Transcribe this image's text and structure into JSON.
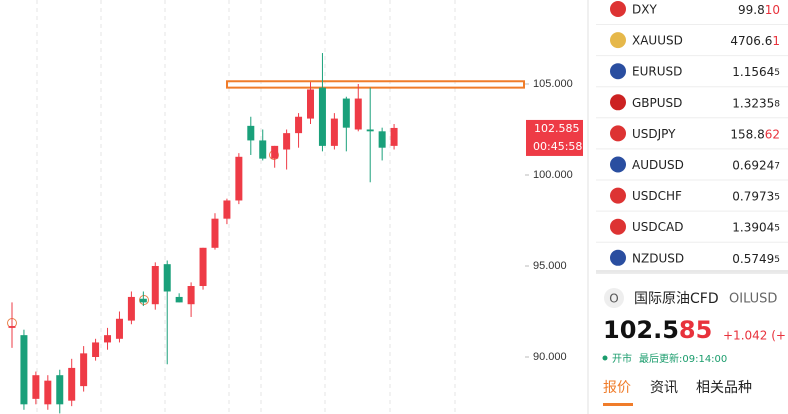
{
  "chart_data": {
    "type": "candlestick",
    "open": [
      91.6,
      91.2,
      87.7,
      87.4,
      89.0,
      87.6,
      88.4,
      90.0,
      90.8,
      91.0,
      92.0,
      93.2,
      92.9,
      95.1,
      93.3,
      92.9,
      93.9,
      96.0,
      97.6,
      98.6,
      102.7,
      101.9,
      100.9,
      101.4,
      102.3,
      103.1,
      104.8,
      101.6,
      104.2,
      102.5,
      102.5,
      102.4,
      101.6
    ],
    "high": [
      93.0,
      91.5,
      89.2,
      89.0,
      89.3,
      89.9,
      90.6,
      91.0,
      91.6,
      92.5,
      93.6,
      93.6,
      95.2,
      95.3,
      93.5,
      94.1,
      96.0,
      97.9,
      98.7,
      101.2,
      103.2,
      102.5,
      101.6,
      102.5,
      103.4,
      105.1,
      106.7,
      103.4,
      104.3,
      105.0,
      104.8,
      102.6,
      102.8
    ],
    "low": [
      90.5,
      87.1,
      87.4,
      87.1,
      86.9,
      87.3,
      88.1,
      89.8,
      90.4,
      90.8,
      91.8,
      92.8,
      92.6,
      89.6,
      93.0,
      92.2,
      93.7,
      95.9,
      97.3,
      98.4,
      101.1,
      100.8,
      100.4,
      100.3,
      101.5,
      102.8,
      101.3,
      101.4,
      101.3,
      102.4,
      99.6,
      100.8,
      101.4
    ],
    "close": [
      91.7,
      87.4,
      89.0,
      88.7,
      87.4,
      89.4,
      90.2,
      90.8,
      91.2,
      92.1,
      93.3,
      93.0,
      95.0,
      93.6,
      93.0,
      93.9,
      96.0,
      97.6,
      98.6,
      101.0,
      101.9,
      100.9,
      101.6,
      102.3,
      103.2,
      104.7,
      101.6,
      103.1,
      102.6,
      104.2,
      102.4,
      101.5,
      102.585
    ],
    "up_color": "#ee3b46",
    "down_color": "#19a07a",
    "ylim": [
      86.868,
      109.615
    ],
    "yticks": [
      {
        "value": 90,
        "label": "90.000"
      },
      {
        "value": 95,
        "label": "95.000"
      },
      {
        "value": 100,
        "label": "100.000"
      },
      {
        "value": 105,
        "label": "105.000"
      }
    ],
    "highlight_band": [
      104.8,
      105.15
    ],
    "highlight_color": "#f07c2a",
    "last_price": {
      "value": 102.585,
      "label": "102.585"
    },
    "countdown": "00:45:58"
  },
  "watchlist": [
    {
      "symbol": "DXY",
      "price": "99.8",
      "tail": "10",
      "tail_up": true
    },
    {
      "symbol": "XAUUSD",
      "price": "4706.6",
      "tail": "1",
      "tail_up": true
    },
    {
      "symbol": "EURUSD",
      "price": "1.1564",
      "tail": "5",
      "tail_up": false
    },
    {
      "symbol": "GBPUSD",
      "price": "1.3235",
      "tail": "8",
      "tail_up": false
    },
    {
      "symbol": "USDJPY",
      "price": "158.8",
      "tail": "62",
      "tail_up": true
    },
    {
      "symbol": "AUDUSD",
      "price": "0.6924",
      "tail": "7",
      "tail_up": false
    },
    {
      "symbol": "USDCHF",
      "price": "0.7973",
      "tail": "5",
      "tail_up": false
    },
    {
      "symbol": "USDCAD",
      "price": "1.3904",
      "tail": "5",
      "tail_up": false
    },
    {
      "symbol": "NZDUSD",
      "price": "0.5749",
      "tail": "5",
      "tail_up": false
    }
  ],
  "quote": {
    "icon": "O",
    "name": "国际原油CFD",
    "code": "OILUSD",
    "price_main": "102.5",
    "price_tail": "85",
    "change": "+1.042 (+",
    "status": "开市",
    "updated": "最后更新:09:14:00",
    "tabs": [
      "报价",
      "资讯",
      "相关品种"
    ]
  }
}
